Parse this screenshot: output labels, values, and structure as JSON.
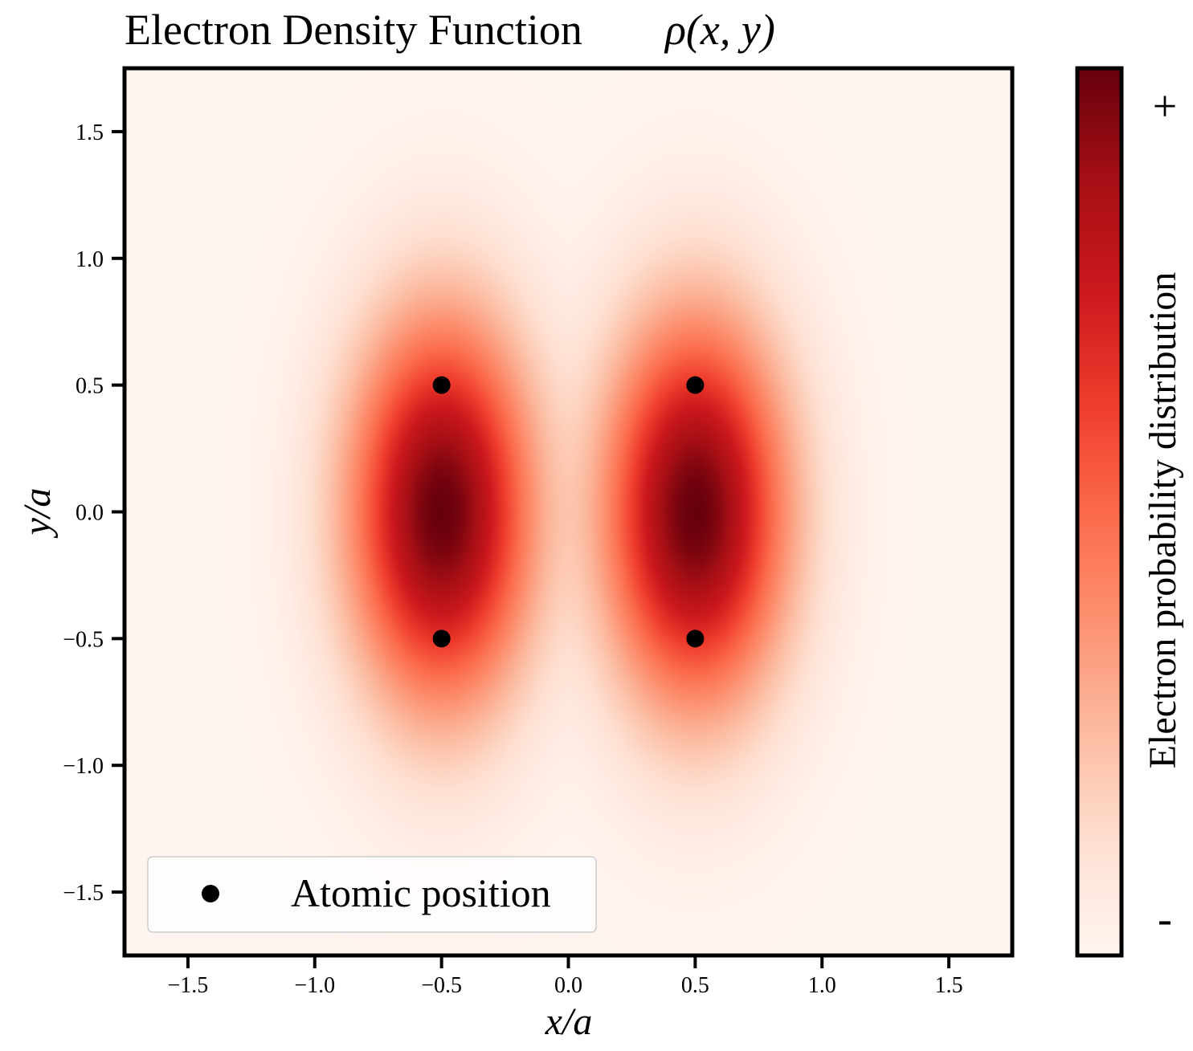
{
  "chart_data": {
    "type": "heatmap",
    "title": "Electron Density Function",
    "title_math": "ρ(x, y)",
    "xlabel": "x/a",
    "ylabel": "y/a",
    "xlim": [
      -1.75,
      1.75
    ],
    "ylim": [
      -1.75,
      1.75
    ],
    "x_ticks": [
      -1.5,
      -1.0,
      -0.5,
      0.0,
      0.5,
      1.0,
      1.5
    ],
    "x_tick_labels": [
      "−1.5",
      "−1.0",
      "−0.5",
      "0.0",
      "0.5",
      "1.0",
      "1.5"
    ],
    "y_ticks": [
      1.5,
      1.0,
      0.5,
      0.0,
      -0.5,
      -1.0,
      -1.5
    ],
    "y_tick_labels": [
      "1.5",
      "1.0",
      "0.5",
      "0.0",
      "−0.5",
      "−1.0",
      "−1.5"
    ],
    "colormap": "Reds",
    "colorbar": {
      "label": "Electron probability distribution",
      "max_label": "+",
      "min_label": "-"
    },
    "density_peaks": [
      {
        "x": -0.5,
        "y": 0.0
      },
      {
        "x": 0.5,
        "y": 0.0
      }
    ],
    "series": [
      {
        "name": "Atomic position",
        "type": "scatter",
        "color": "#000000",
        "points": [
          {
            "x": -0.5,
            "y": 0.5
          },
          {
            "x": 0.5,
            "y": 0.5
          },
          {
            "x": -0.5,
            "y": -0.5
          },
          {
            "x": 0.5,
            "y": -0.5
          }
        ]
      }
    ],
    "legend": {
      "position": "lower-left"
    },
    "grid": false
  }
}
